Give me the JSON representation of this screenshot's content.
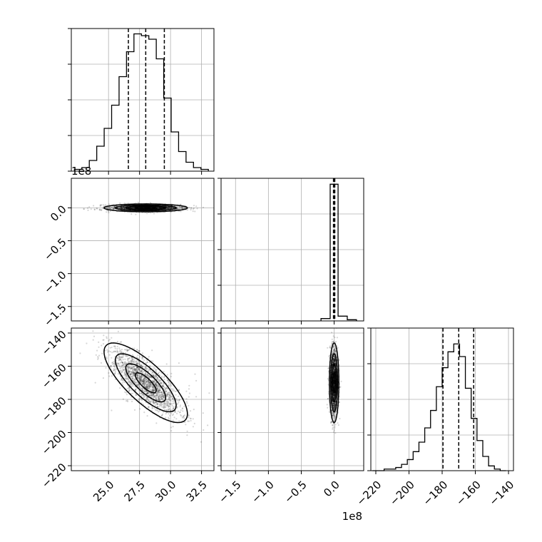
{
  "chart_data": {
    "type": "scatter",
    "layout": "corner-plot",
    "params": 3,
    "offset_labels": {
      "p2_y": "1e8",
      "p2_x": "1e8"
    },
    "axes": {
      "p1": {
        "range": [
          22.0,
          33.5
        ],
        "ticks": [
          25.0,
          27.5,
          30.0,
          32.5
        ],
        "tick_labels": [
          "25.0",
          "27.5",
          "30.0",
          "32.5"
        ]
      },
      "p2": {
        "range": [
          -1.72,
          0.45
        ],
        "ticks": [
          -1.5,
          -1.0,
          -0.5,
          0.0
        ],
        "tick_labels": [
          "−1.5",
          "−1.0",
          "−0.5",
          "0.0"
        ]
      },
      "p3": {
        "range": [
          -223,
          -137
        ],
        "ticks": [
          -220,
          -200,
          -180,
          -160,
          -140
        ],
        "tick_labels": [
          "−220",
          "−200",
          "−180",
          "−160",
          "−140"
        ]
      }
    },
    "hist_p1": {
      "edges": [
        22.25,
        22.85,
        23.45,
        24.05,
        24.65,
        25.25,
        25.85,
        26.45,
        27.05,
        27.65,
        28.25,
        28.85,
        29.45,
        30.05,
        30.65,
        31.25,
        31.85,
        32.45,
        33.05
      ],
      "counts": [
        0.01,
        0.02,
        0.06,
        0.14,
        0.24,
        0.37,
        0.53,
        0.67,
        0.77,
        0.76,
        0.74,
        0.63,
        0.41,
        0.22,
        0.11,
        0.05,
        0.02,
        0.01
      ],
      "ymax": 0.8,
      "quantiles": [
        26.6,
        28.0,
        29.5
      ]
    },
    "hist_p2": {
      "edges": [
        -0.2,
        -0.06,
        0.06,
        0.2,
        0.34
      ],
      "counts": [
        0.02,
        1.15,
        0.04,
        0.01
      ],
      "ymax": 1.2,
      "quantiles": [
        -0.01,
        0.0,
        0.01
      ]
    },
    "hist_p3": {
      "edges": [
        -222,
        -218.5,
        -215,
        -211.5,
        -208,
        -204.5,
        -201,
        -197.5,
        -194,
        -190.5,
        -187,
        -183.5,
        -180,
        -176.5,
        -173,
        -169.5,
        -166,
        -162.5,
        -159,
        -155.5,
        -152,
        -148.5,
        -145,
        -141.5
      ],
      "counts": [
        0.0,
        0.0,
        0.01,
        0.01,
        0.02,
        0.04,
        0.07,
        0.12,
        0.18,
        0.27,
        0.38,
        0.53,
        0.65,
        0.75,
        0.8,
        0.72,
        0.52,
        0.33,
        0.19,
        0.09,
        0.03,
        0.01,
        0.0
      ],
      "ymax": 0.9,
      "quantiles": [
        -179.5,
        -170.0,
        -161.0
      ]
    },
    "density_p1_p2": {
      "center": [
        28.0,
        0.0
      ],
      "spread": [
        1.4,
        0.025
      ]
    },
    "density_p1_p3": {
      "center": [
        28.0,
        -170.0
      ],
      "spread": [
        1.4,
        10.0
      ],
      "correlation": -0.78
    },
    "density_p2_p3": {
      "center": [
        0.0,
        -170.0
      ],
      "spread": [
        0.03,
        10.0
      ]
    }
  }
}
